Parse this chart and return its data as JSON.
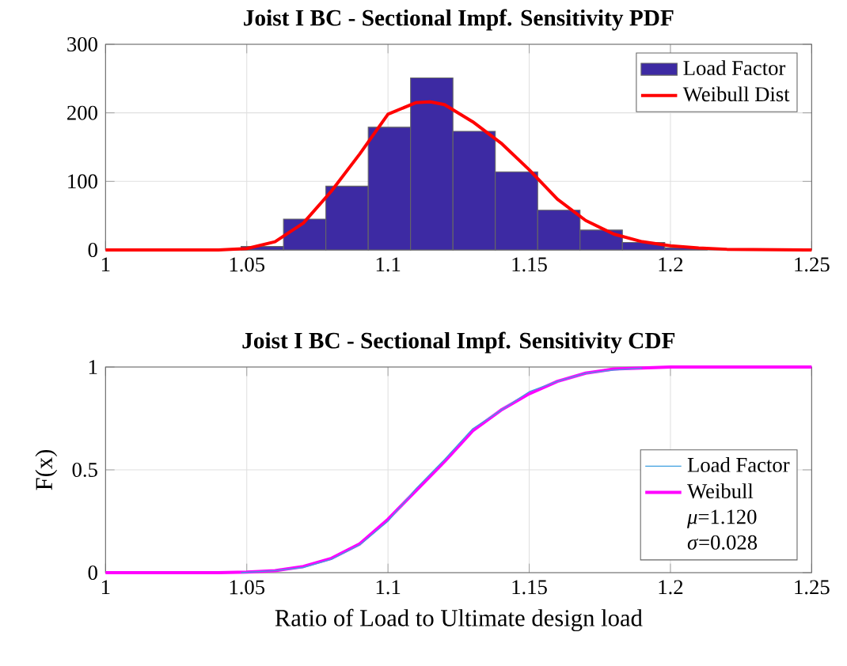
{
  "chart_data": [
    {
      "type": "histogram",
      "title": "Joist I BC - Sectional Impf. Sensitivity PDF",
      "xlim": [
        1,
        1.25
      ],
      "ylim": [
        0,
        300
      ],
      "xticks": [
        1,
        1.05,
        1.1,
        1.15,
        1.2,
        1.25
      ],
      "yticks": [
        0,
        100,
        200,
        300
      ],
      "grid": true,
      "legend": "top right",
      "series": [
        {
          "name": "Load Factor",
          "type": "histogram",
          "color": "#3d2aa3",
          "bins": [
            1.048,
            1.063,
            1.078,
            1.093,
            1.108,
            1.123,
            1.138,
            1.153,
            1.168,
            1.183,
            1.198,
            1.213
          ],
          "values": [
            5,
            45,
            93,
            179,
            251,
            173,
            114,
            58,
            29,
            11,
            3
          ]
        },
        {
          "name": "Weibull Dist",
          "type": "line",
          "color": "#ff0000",
          "x": [
            1.0,
            1.04,
            1.05,
            1.06,
            1.07,
            1.08,
            1.09,
            1.1,
            1.11,
            1.115,
            1.12,
            1.13,
            1.14,
            1.15,
            1.16,
            1.17,
            1.18,
            1.19,
            1.2,
            1.21,
            1.22,
            1.25
          ],
          "values": [
            0,
            0,
            2,
            12,
            39,
            86,
            140,
            198,
            215,
            216,
            212,
            187,
            156,
            117,
            74,
            43,
            23,
            12,
            6,
            3,
            1,
            0
          ]
        }
      ]
    },
    {
      "type": "line",
      "title": "Joist I BC - Sectional Impf. Sensitivity CDF",
      "xlabel": "Ratio of Load to Ultimate design load",
      "ylabel": "F(x)",
      "xlim": [
        1,
        1.25
      ],
      "ylim": [
        0,
        1
      ],
      "xticks": [
        1,
        1.05,
        1.1,
        1.15,
        1.2,
        1.25
      ],
      "yticks": [
        0,
        0.5,
        1
      ],
      "grid": true,
      "legend": "bottom right",
      "annotations": [
        "*μ*=1.120",
        "*σ*=0.028"
      ],
      "series": [
        {
          "name": "Load Factor",
          "color": "#3fa0e0",
          "x": [
            1.048,
            1.06,
            1.07,
            1.08,
            1.09,
            1.1,
            1.11,
            1.12,
            1.13,
            1.14,
            1.15,
            1.16,
            1.17,
            1.18,
            1.19
          ],
          "values": [
            0,
            0.01,
            0.025,
            0.065,
            0.135,
            0.25,
            0.41,
            0.55,
            0.7,
            0.79,
            0.88,
            0.93,
            0.97,
            0.985,
            0.995
          ]
        },
        {
          "name": "Weibull",
          "color": "#ff00ff",
          "x": [
            1.0,
            1.04,
            1.05,
            1.06,
            1.07,
            1.08,
            1.09,
            1.1,
            1.11,
            1.12,
            1.13,
            1.14,
            1.15,
            1.16,
            1.17,
            1.18,
            1.19,
            1.2,
            1.25
          ],
          "values": [
            0,
            0,
            0.003,
            0.01,
            0.03,
            0.07,
            0.14,
            0.26,
            0.4,
            0.54,
            0.69,
            0.79,
            0.87,
            0.93,
            0.97,
            0.99,
            0.995,
            1,
            1
          ]
        }
      ]
    }
  ]
}
